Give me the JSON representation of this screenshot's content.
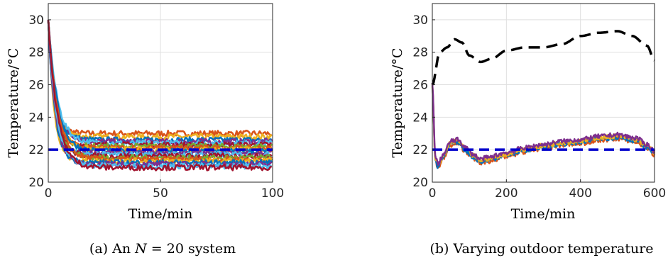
{
  "chart_data": [
    {
      "type": "line",
      "caption": "(a) An N = 20 system",
      "caption_parts": {
        "prefix": "(a) An ",
        "variable": "N",
        "suffix": " = 20 system"
      },
      "xlabel": "Time/min",
      "ylabel": "Temperature/°C",
      "xlim": [
        0,
        100
      ],
      "ylim": [
        20,
        31
      ],
      "xticks": [
        "0",
        "50",
        "100"
      ],
      "yticks": [
        "20",
        "22",
        "24",
        "26",
        "28",
        "30"
      ],
      "grid": true,
      "reference_line": {
        "y": 22,
        "color": "#0000cc",
        "style": "dashed"
      },
      "initial_temperature": 30,
      "series_count": 20,
      "steady_states": [
        23.0,
        22.8,
        22.6,
        22.5,
        22.4,
        22.3,
        22.2,
        22.1,
        22.0,
        21.9,
        21.8,
        21.7,
        21.6,
        21.5,
        21.4,
        21.3,
        21.2,
        21.1,
        21.0,
        20.9
      ],
      "colors": [
        "#D95319",
        "#EDB120",
        "#0072BD",
        "#7E2F8E",
        "#4DBEEE",
        "#A2142F",
        "#77AC30"
      ]
    },
    {
      "type": "line",
      "caption": "(b) Varying outdoor temperature",
      "xlabel": "Time/min",
      "ylabel": "Temperature/°C",
      "xlim": [
        0,
        600
      ],
      "ylim": [
        20,
        31
      ],
      "xticks": [
        "0",
        "200",
        "400",
        "600"
      ],
      "yticks": [
        "20",
        "22",
        "24",
        "26",
        "28",
        "30"
      ],
      "grid": true,
      "reference_line": {
        "y": 22,
        "color": "#0000cc",
        "style": "dashed"
      },
      "outdoor_temperature": {
        "color": "#000000",
        "style": "dashed",
        "x": [
          0,
          20,
          40,
          60,
          80,
          100,
          130,
          160,
          200,
          250,
          300,
          350,
          400,
          450,
          500,
          540,
          580,
          600
        ],
        "y": [
          26.0,
          28.0,
          28.3,
          28.8,
          28.6,
          27.8,
          27.4,
          27.6,
          28.1,
          28.3,
          28.3,
          28.5,
          29.0,
          29.2,
          29.3,
          29.0,
          28.4,
          27.5
        ]
      },
      "room_temperature": {
        "colors": [
          "#7E2F8E",
          "#EDB120",
          "#0072BD",
          "#D95319"
        ],
        "x": [
          0,
          8,
          15,
          30,
          50,
          70,
          90,
          110,
          130,
          150,
          200,
          250,
          300,
          350,
          400,
          450,
          500,
          550,
          580,
          600
        ],
        "y": [
          26.0,
          21.5,
          21.0,
          21.6,
          22.4,
          22.5,
          22.0,
          21.6,
          21.3,
          21.4,
          21.7,
          22.0,
          22.2,
          22.4,
          22.5,
          22.7,
          22.8,
          22.6,
          22.2,
          21.8
        ]
      }
    }
  ]
}
